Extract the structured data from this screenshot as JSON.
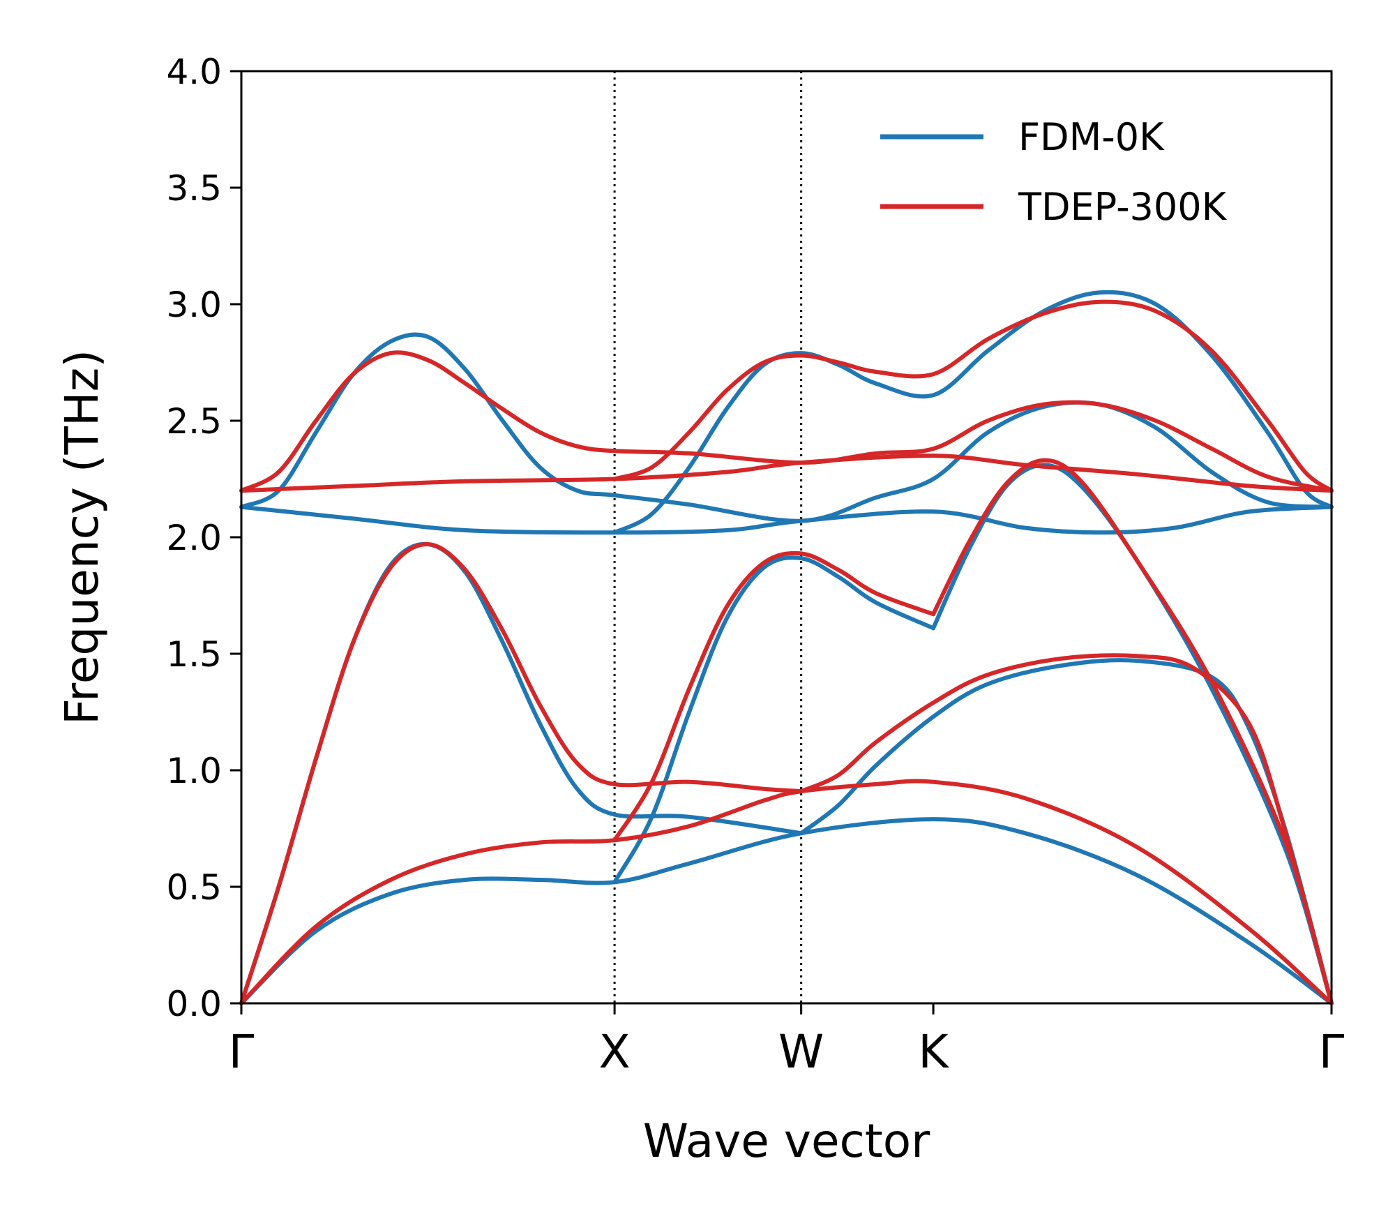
{
  "chart_data": {
    "type": "line",
    "title": "",
    "xlabel": "Wave vector",
    "ylabel": "Frequency (THz)",
    "ylim": [
      0,
      4.0
    ],
    "xlim": [
      0,
      2.921
    ],
    "yticks": [
      0.0,
      0.5,
      1.0,
      1.5,
      2.0,
      2.5,
      3.0,
      3.5,
      4.0
    ],
    "ytick_labels": [
      "0.0",
      "0.5",
      "1.0",
      "1.5",
      "2.0",
      "2.5",
      "3.0",
      "3.5",
      "4.0"
    ],
    "high_symmetry_points": [
      {
        "label": "Γ",
        "x": 0.0
      },
      {
        "label": "X",
        "x": 1.0
      },
      {
        "label": "W",
        "x": 1.5
      },
      {
        "label": "K",
        "x": 1.854
      },
      {
        "label": "Γ",
        "x": 2.921
      }
    ],
    "vlines_at": [
      1.0,
      1.5
    ],
    "grid": false,
    "legend_position": "upper-right",
    "series": [
      {
        "name": "FDM-0K",
        "color": "#1f77b4",
        "branches": [
          [
            [
              0,
              0
            ],
            [
              0.2,
              0.31
            ],
            [
              0.4,
              0.47
            ],
            [
              0.6,
              0.53
            ],
            [
              0.8,
              0.53
            ],
            [
              1.0,
              0.52
            ],
            [
              1.2,
              0.6
            ],
            [
              1.5,
              0.73
            ],
            [
              1.854,
              0.79
            ],
            [
              2.1,
              0.73
            ],
            [
              2.4,
              0.55
            ],
            [
              2.7,
              0.26
            ],
            [
              2.921,
              0
            ]
          ],
          [
            [
              0,
              0
            ],
            [
              0.1,
              0.5
            ],
            [
              0.2,
              1.05
            ],
            [
              0.3,
              1.55
            ],
            [
              0.4,
              1.88
            ],
            [
              0.5,
              1.97
            ],
            [
              0.6,
              1.85
            ],
            [
              0.7,
              1.55
            ],
            [
              0.8,
              1.2
            ],
            [
              0.9,
              0.92
            ],
            [
              1.0,
              0.81
            ],
            [
              1.2,
              0.8
            ],
            [
              1.5,
              0.73
            ]
          ],
          [
            [
              1.0,
              0.52
            ],
            [
              1.1,
              0.8
            ],
            [
              1.2,
              1.25
            ],
            [
              1.3,
              1.65
            ],
            [
              1.4,
              1.87
            ],
            [
              1.5,
              1.91
            ],
            [
              1.6,
              1.83
            ],
            [
              1.7,
              1.72
            ],
            [
              1.854,
              1.61
            ]
          ],
          [
            [
              1.5,
              0.73
            ],
            [
              1.6,
              0.85
            ],
            [
              1.7,
              1.02
            ],
            [
              1.854,
              1.23
            ],
            [
              2.0,
              1.37
            ],
            [
              2.2,
              1.45
            ],
            [
              2.4,
              1.47
            ],
            [
              2.6,
              1.4
            ],
            [
              2.7,
              1.18
            ],
            [
              2.8,
              0.73
            ],
            [
              2.921,
              0
            ]
          ],
          [
            [
              1.854,
              1.61
            ],
            [
              1.95,
              1.95
            ],
            [
              2.05,
              2.22
            ],
            [
              2.15,
              2.31
            ],
            [
              2.25,
              2.22
            ],
            [
              2.4,
              1.9
            ],
            [
              2.6,
              1.35
            ],
            [
              2.8,
              0.65
            ],
            [
              2.921,
              0
            ]
          ],
          [
            [
              0,
              2.13
            ],
            [
              0.3,
              2.08
            ],
            [
              0.6,
              2.03
            ],
            [
              1.0,
              2.02
            ],
            [
              1.3,
              2.03
            ],
            [
              1.5,
              2.07
            ],
            [
              1.854,
              2.11
            ],
            [
              2.1,
              2.04
            ],
            [
              2.3,
              2.02
            ],
            [
              2.5,
              2.04
            ],
            [
              2.7,
              2.11
            ],
            [
              2.921,
              2.13
            ]
          ],
          [
            [
              0,
              2.13
            ],
            [
              0.1,
              2.2
            ],
            [
              0.2,
              2.45
            ],
            [
              0.3,
              2.7
            ],
            [
              0.4,
              2.84
            ],
            [
              0.5,
              2.86
            ],
            [
              0.6,
              2.72
            ],
            [
              0.7,
              2.5
            ],
            [
              0.8,
              2.3
            ],
            [
              0.9,
              2.2
            ],
            [
              1.0,
              2.18
            ],
            [
              1.2,
              2.14
            ],
            [
              1.5,
              2.07
            ],
            [
              1.7,
              2.17
            ],
            [
              1.854,
              2.25
            ],
            [
              2.0,
              2.45
            ],
            [
              2.15,
              2.56
            ],
            [
              2.3,
              2.57
            ],
            [
              2.45,
              2.47
            ],
            [
              2.6,
              2.28
            ],
            [
              2.75,
              2.15
            ],
            [
              2.921,
              2.13
            ]
          ],
          [
            [
              1.0,
              2.02
            ],
            [
              1.1,
              2.1
            ],
            [
              1.2,
              2.3
            ],
            [
              1.3,
              2.55
            ],
            [
              1.4,
              2.74
            ],
            [
              1.5,
              2.79
            ],
            [
              1.6,
              2.74
            ],
            [
              1.7,
              2.66
            ],
            [
              1.854,
              2.61
            ],
            [
              2.0,
              2.8
            ],
            [
              2.15,
              2.97
            ],
            [
              2.3,
              3.05
            ],
            [
              2.45,
              3.0
            ],
            [
              2.6,
              2.78
            ],
            [
              2.75,
              2.45
            ],
            [
              2.85,
              2.2
            ],
            [
              2.921,
              2.13
            ]
          ]
        ]
      },
      {
        "name": "TDEP-300K",
        "color": "#d62728",
        "branches": [
          [
            [
              0,
              0
            ],
            [
              0.2,
              0.33
            ],
            [
              0.4,
              0.53
            ],
            [
              0.6,
              0.64
            ],
            [
              0.8,
              0.69
            ],
            [
              1.0,
              0.7
            ],
            [
              1.2,
              0.76
            ],
            [
              1.4,
              0.87
            ],
            [
              1.5,
              0.91
            ],
            [
              1.7,
              0.94
            ],
            [
              1.854,
              0.95
            ],
            [
              2.1,
              0.88
            ],
            [
              2.4,
              0.67
            ],
            [
              2.7,
              0.32
            ],
            [
              2.921,
              0
            ]
          ],
          [
            [
              0,
              0
            ],
            [
              0.1,
              0.5
            ],
            [
              0.2,
              1.05
            ],
            [
              0.3,
              1.55
            ],
            [
              0.4,
              1.87
            ],
            [
              0.5,
              1.97
            ],
            [
              0.6,
              1.86
            ],
            [
              0.7,
              1.6
            ],
            [
              0.8,
              1.28
            ],
            [
              0.9,
              1.03
            ],
            [
              1.0,
              0.94
            ],
            [
              1.2,
              0.95
            ],
            [
              1.4,
              0.92
            ],
            [
              1.5,
              0.91
            ]
          ],
          [
            [
              1.0,
              0.7
            ],
            [
              1.1,
              0.95
            ],
            [
              1.2,
              1.35
            ],
            [
              1.3,
              1.7
            ],
            [
              1.4,
              1.89
            ],
            [
              1.5,
              1.93
            ],
            [
              1.6,
              1.86
            ],
            [
              1.7,
              1.76
            ],
            [
              1.854,
              1.67
            ]
          ],
          [
            [
              1.5,
              0.91
            ],
            [
              1.6,
              0.98
            ],
            [
              1.7,
              1.12
            ],
            [
              1.854,
              1.29
            ],
            [
              2.0,
              1.41
            ],
            [
              2.2,
              1.48
            ],
            [
              2.4,
              1.49
            ],
            [
              2.55,
              1.44
            ],
            [
              2.7,
              1.2
            ],
            [
              2.8,
              0.72
            ],
            [
              2.921,
              0
            ]
          ],
          [
            [
              1.854,
              1.67
            ],
            [
              1.95,
              1.98
            ],
            [
              2.05,
              2.23
            ],
            [
              2.15,
              2.33
            ],
            [
              2.25,
              2.24
            ],
            [
              2.4,
              1.9
            ],
            [
              2.6,
              1.38
            ],
            [
              2.8,
              0.68
            ],
            [
              2.921,
              0
            ]
          ],
          [
            [
              0,
              2.2
            ],
            [
              0.3,
              2.22
            ],
            [
              0.6,
              2.24
            ],
            [
              1.0,
              2.25
            ],
            [
              1.3,
              2.28
            ],
            [
              1.5,
              2.32
            ],
            [
              1.854,
              2.35
            ],
            [
              2.1,
              2.31
            ],
            [
              2.4,
              2.27
            ],
            [
              2.7,
              2.22
            ],
            [
              2.921,
              2.2
            ]
          ],
          [
            [
              0,
              2.2
            ],
            [
              0.1,
              2.28
            ],
            [
              0.2,
              2.5
            ],
            [
              0.3,
              2.7
            ],
            [
              0.4,
              2.79
            ],
            [
              0.5,
              2.76
            ],
            [
              0.6,
              2.66
            ],
            [
              0.7,
              2.55
            ],
            [
              0.8,
              2.45
            ],
            [
              0.9,
              2.39
            ],
            [
              1.0,
              2.37
            ],
            [
              1.2,
              2.36
            ],
            [
              1.5,
              2.32
            ],
            [
              1.7,
              2.36
            ],
            [
              1.854,
              2.38
            ],
            [
              2.0,
              2.5
            ],
            [
              2.15,
              2.57
            ],
            [
              2.3,
              2.57
            ],
            [
              2.45,
              2.5
            ],
            [
              2.6,
              2.38
            ],
            [
              2.75,
              2.26
            ],
            [
              2.921,
              2.2
            ]
          ],
          [
            [
              1.0,
              2.25
            ],
            [
              1.1,
              2.3
            ],
            [
              1.2,
              2.45
            ],
            [
              1.3,
              2.63
            ],
            [
              1.4,
              2.75
            ],
            [
              1.5,
              2.78
            ],
            [
              1.6,
              2.75
            ],
            [
              1.7,
              2.71
            ],
            [
              1.854,
              2.7
            ],
            [
              2.0,
              2.85
            ],
            [
              2.15,
              2.96
            ],
            [
              2.3,
              3.01
            ],
            [
              2.45,
              2.97
            ],
            [
              2.6,
              2.8
            ],
            [
              2.75,
              2.5
            ],
            [
              2.85,
              2.28
            ],
            [
              2.921,
              2.2
            ]
          ]
        ]
      }
    ]
  }
}
